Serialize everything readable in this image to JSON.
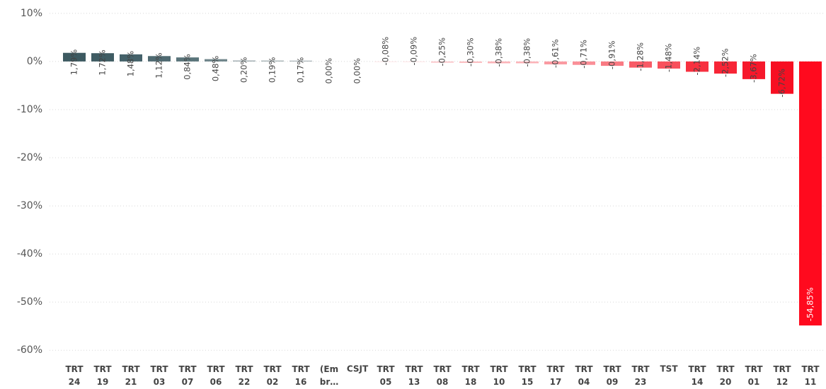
{
  "chart_data": {
    "type": "bar",
    "categories": [
      "TRT 24",
      "TRT 19",
      "TRT 21",
      "TRT 03",
      "TRT 07",
      "TRT 06",
      "TRT 22",
      "TRT 02",
      "TRT 16",
      "(Em br…",
      "CSJT",
      "TRT 05",
      "TRT 13",
      "TRT 08",
      "TRT 18",
      "TRT 10",
      "TRT 15",
      "TRT 17",
      "TRT 04",
      "TRT 09",
      "TRT 23",
      "TST",
      "TRT 14",
      "TRT 20",
      "TRT 01",
      "TRT 12",
      "TRT 11"
    ],
    "values": [
      1.79,
      1.72,
      1.48,
      1.12,
      0.84,
      0.48,
      0.2,
      0.19,
      0.17,
      0.0,
      0.0,
      -0.08,
      -0.09,
      -0.25,
      -0.3,
      -0.38,
      -0.38,
      -0.61,
      -0.71,
      -0.91,
      -1.28,
      -1.48,
      -2.14,
      -2.52,
      -3.67,
      -6.72,
      -54.85
    ],
    "value_labels": [
      "1,79%",
      "1,72%",
      "1,48%",
      "1,12%",
      "0,84%",
      "0,48%",
      "0,20%",
      "0,19%",
      "0,17%",
      "0,00%",
      "0,00%",
      "-0,08%",
      "-0,09%",
      "-0,25%",
      "-0,30%",
      "-0,38%",
      "-0,38%",
      "-0,61%",
      "-0,71%",
      "-0,91%",
      "-1,28%",
      "-1,48%",
      "-2,14%",
      "-2,52%",
      "-3,67%",
      "-6,72%",
      "-54,85%"
    ],
    "colors": [
      "#3d5a61",
      "#3f5c63",
      "#45626a",
      "#4f6a71",
      "#5a747a",
      "#6f858a",
      "#9aa8ab",
      "#9eabae",
      "#a3afb2",
      "#a3afb2",
      "#a3afb2",
      "#fcd4d7",
      "#fcd2d5",
      "#fbc3c7",
      "#fbbcc0",
      "#fbb3b8",
      "#fbb3b8",
      "#fa9aa1",
      "#fa8f97",
      "#f97a83",
      "#f85a66",
      "#f8505c",
      "#f7303f",
      "#f72536",
      "#f6182b",
      "#f70f22",
      "#ff0a1e"
    ],
    "ylim": [
      -60.7,
      11.3
    ],
    "yticks": [
      {
        "value": 10,
        "label": "10%"
      },
      {
        "value": 0,
        "label": "0%"
      },
      {
        "value": -10,
        "label": "-10%"
      },
      {
        "value": -20,
        "label": "-20%"
      },
      {
        "value": -30,
        "label": "-30%"
      },
      {
        "value": -40,
        "label": "-40%"
      },
      {
        "value": -50,
        "label": "-50%"
      },
      {
        "value": -60,
        "label": "-60%"
      }
    ],
    "grid": true
  }
}
